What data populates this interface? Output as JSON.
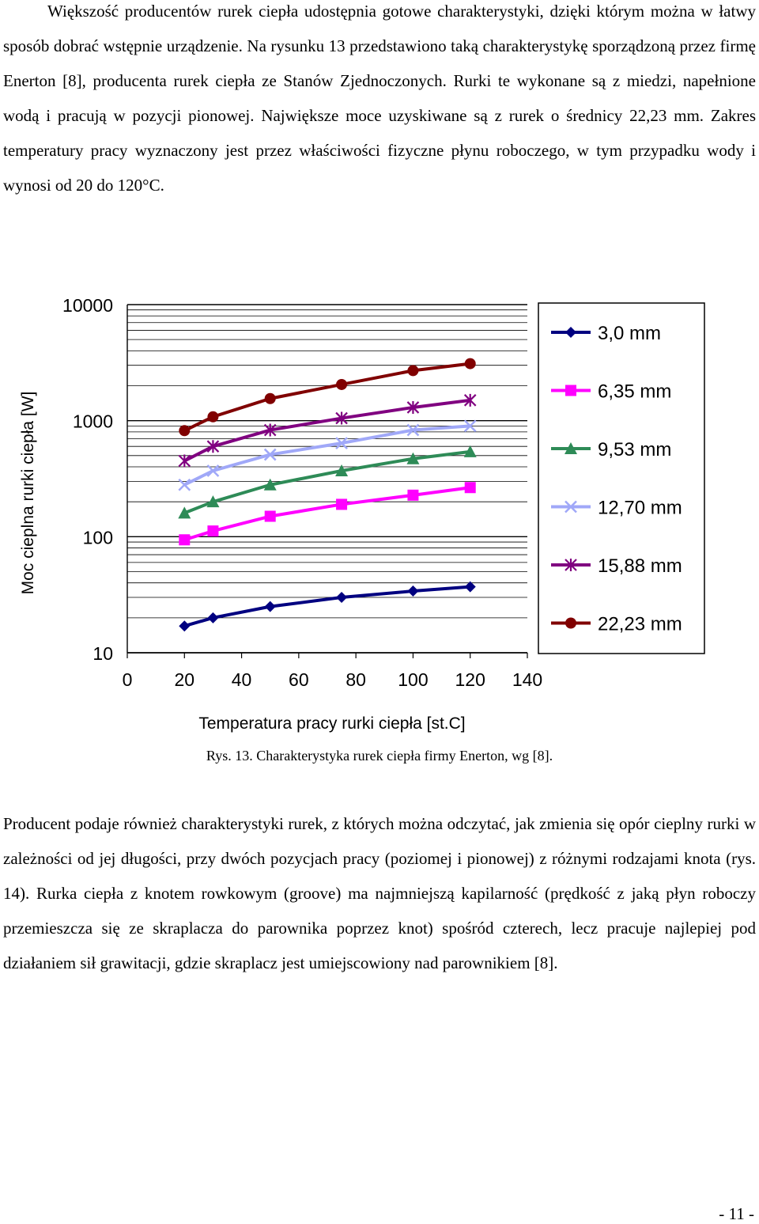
{
  "page": {
    "paragraph1": "Większość producentów rurek ciepła udostępnia gotowe charakterystyki, dzięki którym można w łatwy sposób dobrać wstępnie urządzenie. Na rysunku 13 przedstawiono taką charakterystykę sporządzoną przez firmę Enerton [8], producenta rurek ciepła ze Stanów Zjednoczonych. Rurki te wykonane są z miedzi, napełnione wodą i pracują w pozycji pionowej. Największe moce uzyskiwane są z rurek o średnicy 22,23 mm. Zakres temperatury pracy wyznaczony jest przez właściwości fizyczne płynu roboczego, w tym przypadku wody i wynosi od 20 do 120°C.",
    "caption": "Rys. 13. Charakterystyka rurek ciepła firmy Enerton, wg [8].",
    "paragraph2": "Producent podaje również charakterystyki rurek, z których można odczytać, jak zmienia się opór cieplny rurki w zależności od jej długości, przy dwóch pozycjach pracy (poziomej i pionowej) z różnymi rodzajami knota (rys. 14). Rurka ciepła z knotem rowkowym (groove) ma najmniejszą kapilarność (prędkość z jaką płyn roboczy przemieszcza się ze skraplacza do parownika poprzez knot) spośród czterech, lecz pracuje najlepiej pod działaniem sił grawitacji, gdzie skraplacz jest umiejscowiony nad parownikiem [8].",
    "page_number": "- 11 -"
  },
  "chart_data": {
    "type": "line",
    "xlabel": "Temperatura pracy rurki ciepła [st.C]",
    "ylabel": "Moc cieplna rurki ciepła [W]",
    "yscale": "log",
    "xlim": [
      0,
      140
    ],
    "ylim": [
      10,
      10000
    ],
    "xticks": [
      "0",
      "20",
      "40",
      "60",
      "80",
      "100",
      "120",
      "140"
    ],
    "yticks": [
      "10",
      "100",
      "1000",
      "10000"
    ],
    "grid": "horizontal minor (log)",
    "legend_position": "right",
    "x": [
      20,
      30,
      50,
      75,
      100,
      120
    ],
    "series": [
      {
        "name": "3,0 mm",
        "color": "#000080",
        "marker": "diamond",
        "values": [
          17,
          20,
          25,
          30,
          34,
          37
        ]
      },
      {
        "name": "6,35 mm",
        "color": "#ff00ff",
        "marker": "square",
        "values": [
          94,
          112,
          150,
          190,
          228,
          265
        ]
      },
      {
        "name": "9,53 mm",
        "color": "#2e8b57",
        "marker": "triangle",
        "values": [
          160,
          200,
          280,
          370,
          470,
          540
        ]
      },
      {
        "name": "12,70 mm",
        "color": "#a0a8f8",
        "marker": "x",
        "values": [
          280,
          370,
          510,
          640,
          830,
          900
        ]
      },
      {
        "name": "15,88 mm",
        "color": "#800080",
        "marker": "star",
        "values": [
          450,
          600,
          830,
          1050,
          1300,
          1500
        ]
      },
      {
        "name": "22,23 mm",
        "color": "#800000",
        "marker": "circle",
        "values": [
          820,
          1080,
          1550,
          2050,
          2700,
          3100
        ]
      }
    ]
  }
}
